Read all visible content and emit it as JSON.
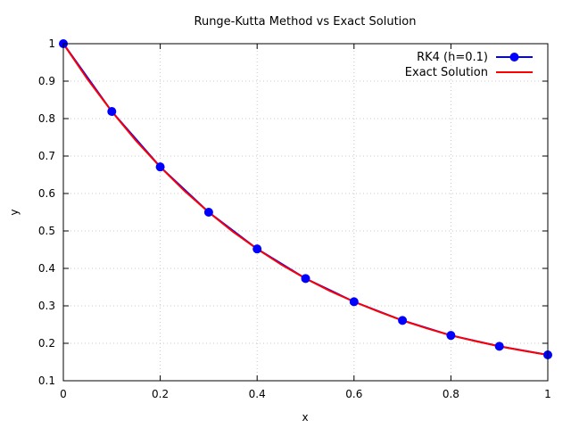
{
  "chart_data": {
    "type": "line",
    "title": "Runge-Kutta Method vs Exact Solution",
    "xlabel": "x",
    "ylabel": "y",
    "xlim": [
      0,
      1
    ],
    "ylim": [
      0.1,
      1
    ],
    "x_ticks": [
      "0",
      "0.2",
      "0.4",
      "0.6",
      "0.8",
      "1"
    ],
    "y_ticks": [
      "0.1",
      "0.2",
      "0.3",
      "0.4",
      "0.5",
      "0.6",
      "0.7",
      "0.8",
      "0.9",
      "1"
    ],
    "grid": true,
    "legend_position": "top-right",
    "series": [
      {
        "name": "RK4 (h=0.1)",
        "color": "#0000ff",
        "marker": "circle",
        "x": [
          0,
          0.1,
          0.2,
          0.3,
          0.4,
          0.5,
          0.6,
          0.7,
          0.8,
          0.9,
          1.0
        ],
        "y": [
          1.0,
          0.819,
          0.671,
          0.55,
          0.452,
          0.373,
          0.311,
          0.261,
          0.221,
          0.192,
          0.169
        ]
      },
      {
        "name": "Exact Solution",
        "color": "#ff0000",
        "marker": "none",
        "x": [
          0,
          0.05,
          0.1,
          0.15,
          0.2,
          0.25,
          0.3,
          0.35,
          0.4,
          0.45,
          0.5,
          0.55,
          0.6,
          0.65,
          0.7,
          0.75,
          0.8,
          0.85,
          0.9,
          0.95,
          1.0
        ],
        "y": [
          1.0,
          0.905,
          0.819,
          0.741,
          0.671,
          0.607,
          0.55,
          0.498,
          0.452,
          0.41,
          0.373,
          0.34,
          0.311,
          0.285,
          0.261,
          0.24,
          0.221,
          0.206,
          0.192,
          0.18,
          0.169
        ]
      }
    ]
  }
}
